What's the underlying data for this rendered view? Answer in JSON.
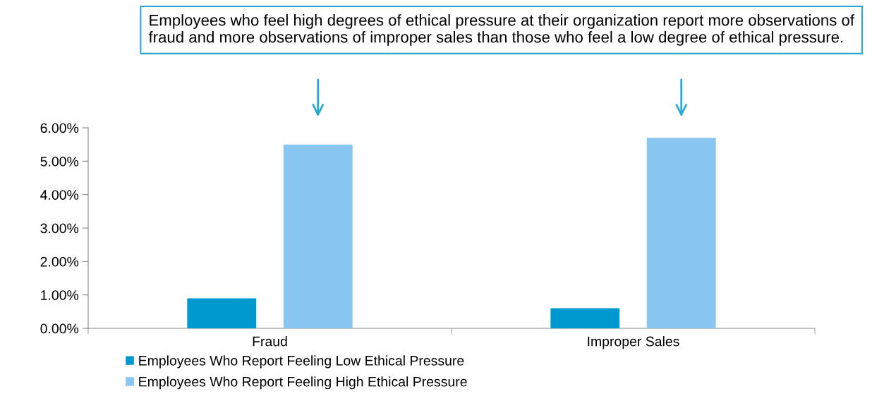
{
  "chart_data": {
    "type": "bar",
    "annotations": [
      "Employees who feel high degrees of ethical pressure at their organization report more observations of fraud and more observations of improper sales than those who feel a low degree of ethical pressure."
    ],
    "categories": [
      "Fraud",
      "Improper Sales"
    ],
    "series": [
      {
        "name": "Employees Who Report Feeling Low Ethical Pressure",
        "color": "#0099cf",
        "values": [
          0.9,
          0.6
        ]
      },
      {
        "name": "Employees Who Report Feeling High Ethical Pressure",
        "color": "#88c5f0",
        "values": [
          5.5,
          5.7
        ]
      }
    ],
    "ylim": [
      0,
      6
    ],
    "yticks": [
      {
        "value": 0,
        "label": "0.00%"
      },
      {
        "value": 1,
        "label": "1.00%"
      },
      {
        "value": 2,
        "label": "2.00%"
      },
      {
        "value": 3,
        "label": "3.00%"
      },
      {
        "value": 4,
        "label": "4.00%"
      },
      {
        "value": 5,
        "label": "5.00%"
      },
      {
        "value": 6,
        "label": "6.00%"
      }
    ],
    "grid": false,
    "legend": "bottom"
  }
}
